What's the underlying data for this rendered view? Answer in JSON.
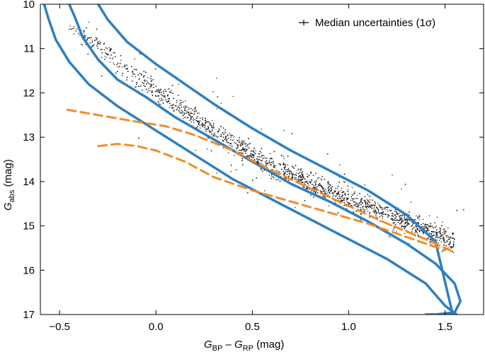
{
  "chart_data": {
    "type": "scatter",
    "title": "",
    "xlabel": {
      "main": "G",
      "sub1": "BP",
      "dash": " – ",
      "main2": "G",
      "sub2": "RP",
      "unit": " (mag)"
    },
    "ylabel": {
      "main": "G",
      "sub": "abs",
      "unit": " (mag)"
    },
    "xlim": [
      -0.6,
      1.7
    ],
    "ylim": [
      17,
      10
    ],
    "x_ticks": [
      -0.5,
      0.0,
      0.5,
      1.0,
      1.5
    ],
    "x_tick_labels": [
      "−0.5",
      "0.0",
      "0.5",
      "1.0",
      "1.5"
    ],
    "y_ticks": [
      10,
      11,
      12,
      13,
      14,
      15,
      16,
      17
    ],
    "y_tick_labels": [
      "10",
      "11",
      "12",
      "13",
      "14",
      "15",
      "16",
      "17"
    ],
    "legend": {
      "label": "Median uncertainties (1σ)",
      "position": "top-right",
      "error_bar": {
        "x_err": 0.02,
        "y_err": 0.02
      }
    },
    "colors": {
      "points": "#222222",
      "isochrone": "#2e7fc0",
      "dashed": "#f28c28"
    },
    "scatter_sequence": {
      "description_points": "main sequence stars",
      "ridge_x": [
        -0.4,
        -0.2,
        0.0,
        0.2,
        0.4,
        0.6,
        0.8,
        1.0,
        1.2,
        1.4
      ],
      "ridge_y": [
        10.6,
        11.3,
        11.95,
        12.55,
        13.15,
        13.65,
        14.05,
        14.4,
        14.75,
        15.1
      ]
    },
    "series": [
      {
        "name": "isochrone-1",
        "style": "solid",
        "x": [
          -0.58,
          -0.56,
          -0.52,
          -0.45,
          -0.35,
          -0.2,
          0.0,
          0.2,
          0.4,
          0.6,
          0.8,
          1.0,
          1.2,
          1.4,
          1.5,
          1.56
        ],
        "y": [
          10.0,
          10.3,
          10.8,
          11.3,
          11.8,
          12.3,
          12.85,
          13.4,
          13.95,
          14.4,
          14.85,
          15.3,
          15.75,
          16.3,
          16.8,
          17.0
        ]
      },
      {
        "name": "isochrone-2",
        "style": "solid",
        "x": [
          -0.45,
          -0.42,
          -0.38,
          -0.3,
          -0.2,
          -0.05,
          0.1,
          0.3,
          0.5,
          0.7,
          0.9,
          1.1,
          1.3,
          1.45,
          1.55,
          1.58,
          1.55,
          1.45,
          1.4
        ],
        "y": [
          10.0,
          10.3,
          10.75,
          11.25,
          11.7,
          12.1,
          12.55,
          13.05,
          13.55,
          14.05,
          14.45,
          14.9,
          15.4,
          15.85,
          16.3,
          16.7,
          16.95,
          17.0,
          17.0
        ]
      },
      {
        "name": "isochrone-3",
        "style": "solid",
        "x": [
          -0.3,
          -0.25,
          -0.15,
          0.0,
          0.15,
          0.3,
          0.5,
          0.7,
          0.9,
          1.1,
          1.3,
          1.45,
          1.54
        ],
        "y": [
          10.0,
          10.35,
          10.85,
          11.35,
          11.8,
          12.25,
          12.8,
          13.3,
          13.75,
          14.2,
          14.75,
          15.35,
          17.0
        ]
      },
      {
        "name": "model-dashed-upper",
        "style": "dashed",
        "x": [
          -0.46,
          -0.3,
          -0.1,
          0.05,
          0.2,
          0.4,
          0.6,
          0.8,
          1.0,
          1.2,
          1.4,
          1.55
        ],
        "y": [
          12.38,
          12.5,
          12.65,
          12.75,
          12.95,
          13.3,
          13.75,
          14.15,
          14.55,
          14.95,
          15.3,
          15.6
        ]
      },
      {
        "name": "model-dashed-lower",
        "style": "dashed",
        "x": [
          -0.3,
          -0.2,
          -0.1,
          0.0,
          0.15,
          0.3,
          0.5,
          0.7,
          0.9,
          1.1,
          1.3,
          1.5
        ],
        "y": [
          13.2,
          13.15,
          13.2,
          13.3,
          13.55,
          13.9,
          14.2,
          14.45,
          14.7,
          14.95,
          15.25,
          15.55
        ]
      }
    ]
  }
}
